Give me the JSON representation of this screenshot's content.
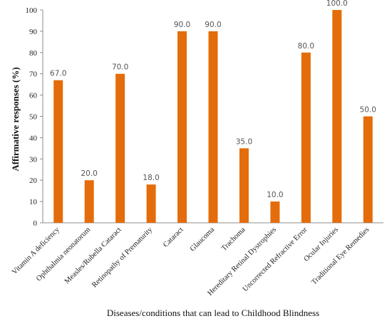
{
  "chart_data": {
    "type": "bar",
    "categories": [
      "Vitamin A deficiency",
      "Ophthalmia neonatorum",
      "Measles/Rubella Cataract",
      "Retinopathy of Prematurity",
      "Cataract",
      "Glaucoma",
      "Trachoma",
      "Hereditary Retinal Dystrophies",
      "Uncorrected Refractive Error",
      "Ocular Injuries",
      "Traditional Eye Remedies"
    ],
    "values": [
      67.0,
      20.0,
      70.0,
      18.0,
      90.0,
      90.0,
      35.0,
      10.0,
      80.0,
      100.0,
      50.0
    ],
    "data_labels": [
      "67.0",
      "20.0",
      "70.0",
      "18.0",
      "90.0",
      "90.0",
      "35.0",
      "10.0",
      "80.0",
      "100.0",
      "50.0"
    ],
    "xlabel": "Diseases/conditions that can lead to Childhood Blindness",
    "ylabel": "Affirmative responses (%)",
    "ylim": [
      0,
      100
    ],
    "yticks": [
      0,
      10,
      20,
      30,
      40,
      50,
      60,
      70,
      80,
      90,
      100
    ],
    "bar_color": "#E46C0A",
    "grid": false
  }
}
